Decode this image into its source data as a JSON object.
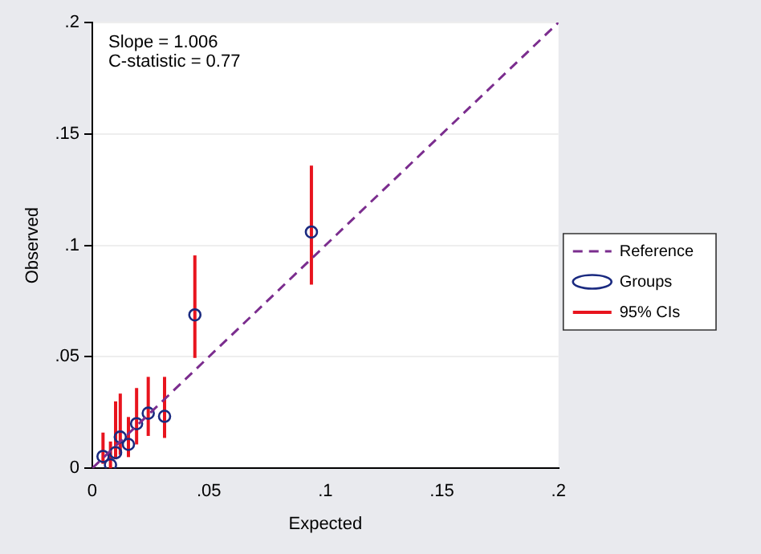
{
  "chart_data": {
    "type": "scatter",
    "xlabel": "Expected",
    "ylabel": "Observed",
    "xlim": [
      0,
      0.2
    ],
    "ylim": [
      0,
      0.2
    ],
    "xticks": [
      0,
      {
        "value": 0.05,
        "label": ".05"
      },
      {
        "value": 0.1,
        "label": ".1"
      },
      {
        "value": 0.15,
        "label": ".15"
      },
      {
        "value": 0.2,
        "label": ".2"
      }
    ],
    "yticks": [
      0,
      {
        "value": 0.05,
        "label": ".05"
      },
      {
        "value": 0.1,
        "label": ".1"
      },
      {
        "value": 0.15,
        "label": ".15"
      },
      {
        "value": 0.2,
        "label": ".2"
      }
    ],
    "grid": "y",
    "legend": "right",
    "annotations": [
      "Slope = 1.006",
      "C-statistic = 0.77",
      "95% CIs"
    ],
    "series": [
      {
        "name": "Reference",
        "type": "line",
        "color": "#7b2d8e",
        "line_style": "dashed",
        "marker": "none",
        "x": [
          0,
          0.2
        ],
        "values": [
          0,
          0.2
        ]
      },
      {
        "name": "Groups",
        "type": "scatter",
        "color": "#1a2a80",
        "marker": "circle",
        "x": [
          0.0046,
          0.0078,
          0.01,
          0.012,
          0.0155,
          0.019,
          0.024,
          0.031,
          0.044,
          0.094
        ],
        "values": [
          0.0053,
          0.0015,
          0.007,
          0.014,
          0.0107,
          0.02,
          0.0247,
          0.0233,
          0.0688,
          0.106
        ],
        "errors": [
          [
            0.002,
            0.016
          ],
          [
            0,
            0.012
          ],
          [
            0.004,
            0.03
          ],
          [
            0.006,
            0.0335
          ],
          [
            0.005,
            0.023
          ],
          [
            0.0107,
            0.036
          ],
          [
            0.0145,
            0.041
          ],
          [
            0.0136,
            0.041
          ],
          [
            0.0495,
            0.0955
          ],
          [
            0.0824,
            0.1358
          ]
        ]
      }
    ]
  }
}
